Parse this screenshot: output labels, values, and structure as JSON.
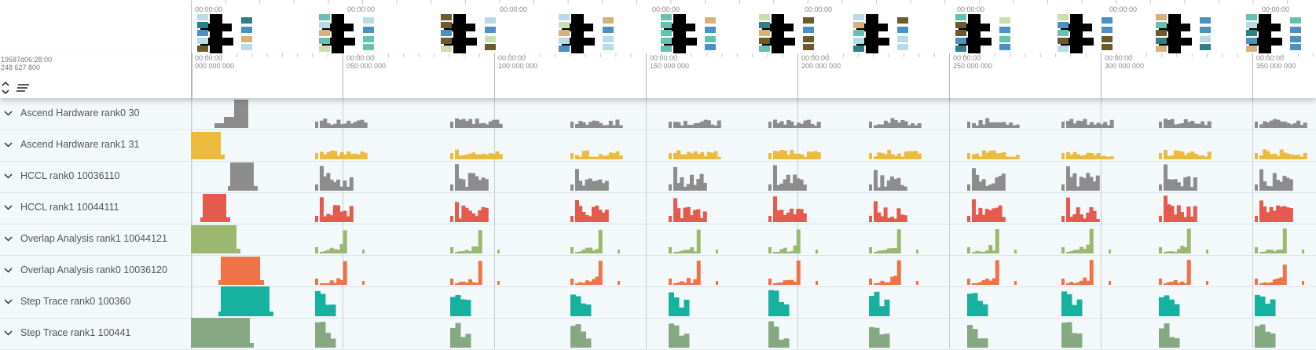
{
  "header": {
    "timestamp_line1": "19587d06:28:00",
    "timestamp_line2": "248 627 800",
    "ruler_ticks": [
      {
        "top": "00:00:00",
        "bottom": "000 000 000"
      },
      {
        "top": "00:00:00",
        "bottom": "050 000 000"
      },
      {
        "top": "00:00:00",
        "bottom": "100 000 000"
      },
      {
        "top": "00:00:00",
        "bottom": "150 000 000"
      },
      {
        "top": "00:00:00",
        "bottom": "200 000 000"
      },
      {
        "top": "00:00:00",
        "bottom": "250 000 000"
      },
      {
        "top": "00:00:00",
        "bottom": "300 000 000"
      },
      {
        "top": "00:00:00",
        "bottom": "350 000 000"
      }
    ]
  },
  "overview": {
    "tick_label": "00:00:00",
    "colors": [
      "#000000",
      "#66c2b0",
      "#2f7f86",
      "#b8dbe6",
      "#d6b27a",
      "#6b5a2a",
      "#c9dfae",
      "#4a90c0"
    ]
  },
  "tracks": [
    {
      "label": "Ascend Hardware rank0 30",
      "color": "#8c8c8c"
    },
    {
      "label": "Ascend Hardware rank1 31",
      "color": "#ecbb3b"
    },
    {
      "label": "HCCL rank0 10036110",
      "color": "#8c8c8c"
    },
    {
      "label": "HCCL rank1 10044111",
      "color": "#e55a4f"
    },
    {
      "label": "Overlap Analysis rank1 10044121",
      "color": "#9bb870"
    },
    {
      "label": "Overlap Analysis rank0 10036120",
      "color": "#ee7448"
    },
    {
      "label": "Step Trace rank0 100360",
      "color": "#17b1a0"
    },
    {
      "label": "Step Trace rank1 100441",
      "color": "#86a882"
    }
  ]
}
